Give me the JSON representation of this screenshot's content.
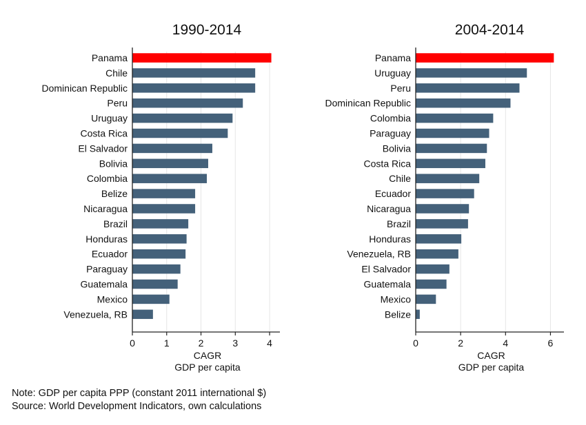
{
  "chart_data": [
    {
      "type": "bar",
      "orientation": "horizontal",
      "title": "1990-2014",
      "xlabel": "CAGR",
      "xlabel2": "GDP per capita",
      "xlim": [
        0,
        4.3
      ],
      "xticks": [
        "0",
        "1",
        "2",
        "3",
        "4"
      ],
      "grid": true,
      "highlight": "Panama",
      "categories": [
        "Panama",
        "Chile",
        "Dominican Republic",
        "Peru",
        "Uruguay",
        "Costa Rica",
        "El Salvador",
        "Bolivia",
        "Colombia",
        "Belize",
        "Nicaragua",
        "Brazil",
        "Honduras",
        "Ecuador",
        "Paraguay",
        "Guatemala",
        "Mexico",
        "Venezuela, RB"
      ],
      "values": [
        4.05,
        3.58,
        3.58,
        3.22,
        2.92,
        2.78,
        2.33,
        2.21,
        2.17,
        1.83,
        1.83,
        1.63,
        1.58,
        1.55,
        1.4,
        1.32,
        1.08,
        0.6
      ]
    },
    {
      "type": "bar",
      "orientation": "horizontal",
      "title": "2004-2014",
      "xlabel": "CAGR",
      "xlabel2": "GDP per capita",
      "xlim": [
        0,
        6.6
      ],
      "xticks": [
        "0",
        "2",
        "4",
        "6"
      ],
      "grid": true,
      "highlight": "Panama",
      "categories": [
        "Panama",
        "Uruguay",
        "Peru",
        "Dominican Republic",
        "Colombia",
        "Paraguay",
        "Bolivia",
        "Costa Rica",
        "Chile",
        "Ecuador",
        "Nicaragua",
        "Brazil",
        "Honduras",
        "Venezuela, RB",
        "El Salvador",
        "Guatemala",
        "Mexico",
        "Belize"
      ],
      "values": [
        6.15,
        4.95,
        4.62,
        4.22,
        3.45,
        3.27,
        3.17,
        3.1,
        2.83,
        2.6,
        2.37,
        2.33,
        2.03,
        1.9,
        1.5,
        1.37,
        0.9,
        0.18
      ]
    }
  ],
  "colors": {
    "bar": "#44617a",
    "highlight": "#ff0000",
    "axis": "#222222",
    "grid": "#e6e6e6"
  },
  "note": {
    "line1": "Note: GDP per capita PPP (constant 2011 international $)",
    "line2": "Source: World Development Indicators, own calculations"
  }
}
